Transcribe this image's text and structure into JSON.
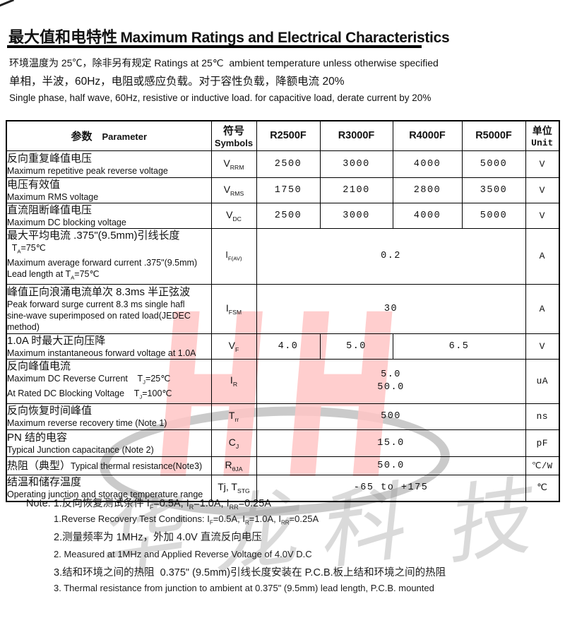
{
  "title": {
    "zh": "最大值和电特性",
    "en": "Maximum Ratings and Electrical Characteristics"
  },
  "intro": {
    "line1": "环境温度为 25℃，除非另有规定 Ratings at 25℃  ambient temperature unless otherwise specified",
    "line2": "单相，半波，60Hz，电阻或感应负载。对于容性负载，降额电流 20%",
    "line3": "Single phase, half wave, 60Hz, resistive or inductive load. for capacitive load, derate current by 20%"
  },
  "table": {
    "header": {
      "param_zh": "参数",
      "param_en": "Parameter",
      "symbol_zh": "符号",
      "symbol_en": "Symbols",
      "models": [
        "R2500F",
        "R3000F",
        "R4000F",
        "R5000F"
      ],
      "unit_zh": "单位",
      "unit_en": "Unit"
    },
    "rows": [
      {
        "zh": "反向重复峰值电压",
        "en1": "Maximum repetitive peak reverse voltage",
        "symbol": "V~RRM~",
        "values": [
          "2500",
          "3000",
          "4000",
          "5000"
        ],
        "unit": "V"
      },
      {
        "zh": "电压有效值",
        "en1": "Maximum RMS voltage",
        "symbol": "V~RMS~",
        "values": [
          "1750",
          "2100",
          "2800",
          "3500"
        ],
        "unit": "V"
      },
      {
        "zh": "直流阻断峰值电压",
        "en1": "Maximum DC blocking voltage",
        "symbol": "V~DC~",
        "values": [
          "2500",
          "3000",
          "4000",
          "5000"
        ],
        "unit": "V"
      },
      {
        "zh": "最大平均电流 .375\"(9.5mm)引线长度",
        "en1": "  T~A~=75℃",
        "en2": "Maximum average forward current .375\"(9.5mm)",
        "en3": "Lead length at T~A~=75℃",
        "symbol": "I~F(AV)~",
        "span_value": "0.2",
        "unit": "A"
      },
      {
        "zh": "峰值正向浪涌电流单次 8.3ms 半正弦波",
        "en1": "Peak forward surge current 8.3 ms single hafl",
        "en2": "sine-wave superimposed on rated load(JEDEC",
        "en3": "method)",
        "symbol": "I~FSM~",
        "span_value": "30",
        "unit": "A"
      },
      {
        "zh": "1.0A 时最大正向压降",
        "en1": "Maximum instantaneous forward voltage at 1.0A",
        "symbol": "V~F~",
        "vf": [
          "4.0",
          "5.0",
          "6.5"
        ],
        "unit": "V"
      },
      {
        "zh": "反向峰值电流",
        "en1": "Maximum DC Reverse Current    T~J~=25℃",
        "en2": "At Rated DC Blocking Voltage    T~J~=100℃",
        "symbol": "I~R~",
        "span_lines": [
          "5.0",
          "50.0"
        ],
        "unit": "uA"
      },
      {
        "zh": "反向恢复时间峰值",
        "en1": "Maximum reverse recovery time (Note 1)",
        "symbol": "T~rr~",
        "span_value": "500",
        "unit": "ns"
      },
      {
        "zh": "PN 结的电容",
        "en1": "Typical Junction capacitance (Note 2)",
        "symbol": "C~J~",
        "span_value": "15.0",
        "unit": "pF"
      },
      {
        "zh": "热阻（典型）",
        "en_inline": "Typical thermal resistance(Note3)",
        "symbol": "R~θJA~",
        "span_value": "50.0",
        "unit": "℃/W"
      },
      {
        "zh": "结温和储存温度",
        "en1": "Operating junction and storage temperature range",
        "symbol": "Tj, T~STG~",
        "span_value": "-65 to +175",
        "unit": "℃"
      }
    ]
  },
  "notes": {
    "prefix": "Note: ",
    "lines": [
      "1.反向恢复测试条件 I~F~=0.5A, I~R~=1.0A, I~RR~=0.25A",
      "1.Reverse Recovery Test Conditions: I~F~=0.5A, I~R~=1.0A, I~RR~=0.25A",
      "2.测量频率为 1MHz，外加 4.0V 直流反向电压",
      "2. Measured at 1MHz and Applied Reverse Voltage of 4.0V D.C",
      "3.结和环境之间的热阻  0.375\" (9.5mm)引线长度安装在 P.C.B.板上结和环境之间的热阻",
      "3. Thermal resistance from junction to ambient at 0.375\" (9.5mm) lead length, P.C.B. mounted"
    ]
  },
  "watermark": {
    "hh_text": "HH",
    "company_chars": [
      "华",
      "龙",
      "科",
      "技"
    ],
    "pink": "#ffc6c6",
    "gray": "#969696"
  }
}
